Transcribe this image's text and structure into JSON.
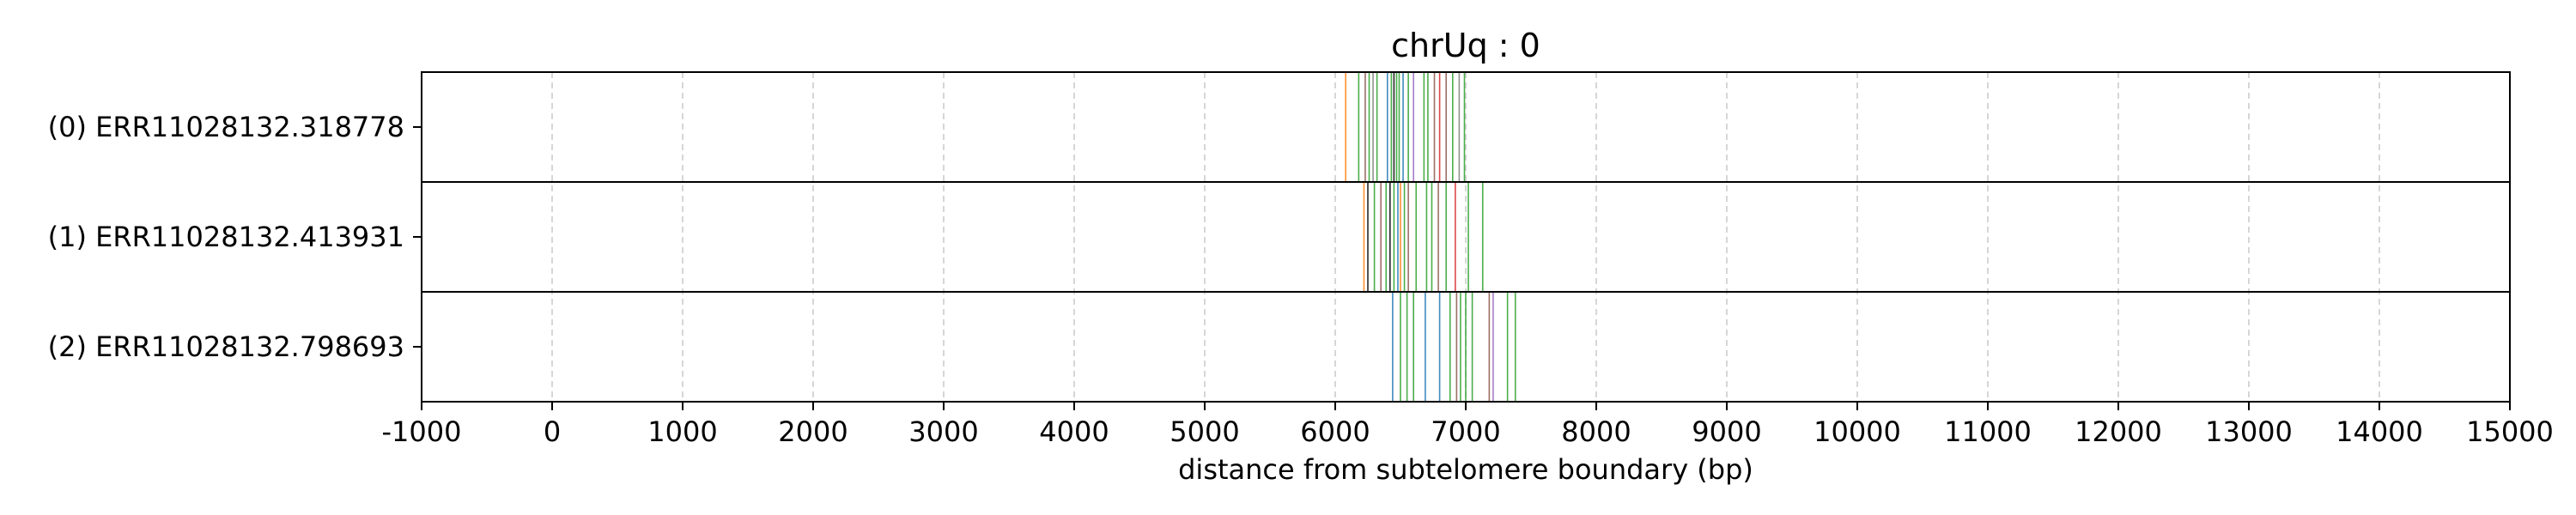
{
  "chart_data": {
    "type": "event-lines",
    "title": "chrUq : 0",
    "xlabel": "distance from subtelomere boundary (bp)",
    "xlim": [
      -1000,
      15000
    ],
    "xticks": [
      -1000,
      0,
      1000,
      2000,
      3000,
      4000,
      5000,
      6000,
      7000,
      8000,
      9000,
      10000,
      11000,
      12000,
      13000,
      14000,
      15000
    ],
    "xtick_labels": [
      "-1000",
      "0",
      "1000",
      "2000",
      "3000",
      "4000",
      "5000",
      "6000",
      "7000",
      "8000",
      "9000",
      "10000",
      "11000",
      "12000",
      "13000",
      "14000",
      "15000"
    ],
    "grid": "vertical dashed",
    "rows": [
      {
        "label": "(0) ERR11028132.318778",
        "events": [
          {
            "x": 6080,
            "color": "#ff7f0e"
          },
          {
            "x": 6180,
            "color": "#2ca02c"
          },
          {
            "x": 6230,
            "color": "#8c564b"
          },
          {
            "x": 6260,
            "color": "#2ca02c"
          },
          {
            "x": 6290,
            "color": "#7f7f7f"
          },
          {
            "x": 6320,
            "color": "#2ca02c"
          },
          {
            "x": 6400,
            "color": "#1f77b4"
          },
          {
            "x": 6430,
            "color": "#2ca02c"
          },
          {
            "x": 6450,
            "color": "#000000"
          },
          {
            "x": 6470,
            "color": "#2ca02c"
          },
          {
            "x": 6490,
            "color": "#2ca02c"
          },
          {
            "x": 6520,
            "color": "#1f77b4"
          },
          {
            "x": 6560,
            "color": "#2ca02c"
          },
          {
            "x": 6600,
            "color": "#9467bd"
          },
          {
            "x": 6680,
            "color": "#2ca02c"
          },
          {
            "x": 6710,
            "color": "#2ca02c"
          },
          {
            "x": 6760,
            "color": "#8c564b"
          },
          {
            "x": 6800,
            "color": "#d62728"
          },
          {
            "x": 6850,
            "color": "#8c564b"
          },
          {
            "x": 6900,
            "color": "#2ca02c"
          },
          {
            "x": 6950,
            "color": "#7f7f7f"
          },
          {
            "x": 6990,
            "color": "#2ca02c"
          }
        ]
      },
      {
        "label": "(1) ERR11028132.413931",
        "events": [
          {
            "x": 6220,
            "color": "#ff7f0e"
          },
          {
            "x": 6250,
            "color": "#000000"
          },
          {
            "x": 6300,
            "color": "#2ca02c"
          },
          {
            "x": 6350,
            "color": "#8c564b"
          },
          {
            "x": 6390,
            "color": "#2ca02c"
          },
          {
            "x": 6420,
            "color": "#000000"
          },
          {
            "x": 6450,
            "color": "#2ca02c"
          },
          {
            "x": 6480,
            "color": "#1f77b4"
          },
          {
            "x": 6500,
            "color": "#ff7f0e"
          },
          {
            "x": 6530,
            "color": "#2ca02c"
          },
          {
            "x": 6560,
            "color": "#8c564b"
          },
          {
            "x": 6620,
            "color": "#2ca02c"
          },
          {
            "x": 6700,
            "color": "#2ca02c"
          },
          {
            "x": 6740,
            "color": "#2ca02c"
          },
          {
            "x": 6790,
            "color": "#8c564b"
          },
          {
            "x": 6850,
            "color": "#2ca02c"
          },
          {
            "x": 6920,
            "color": "#d62728"
          },
          {
            "x": 7020,
            "color": "#2ca02c"
          },
          {
            "x": 7130,
            "color": "#2ca02c"
          }
        ]
      },
      {
        "label": "(2) ERR11028132.798693",
        "events": [
          {
            "x": 6440,
            "color": "#1f77b4"
          },
          {
            "x": 6500,
            "color": "#2ca02c"
          },
          {
            "x": 6550,
            "color": "#2ca02c"
          },
          {
            "x": 6600,
            "color": "#2ca02c"
          },
          {
            "x": 6690,
            "color": "#1f77b4"
          },
          {
            "x": 6800,
            "color": "#1f77b4"
          },
          {
            "x": 6880,
            "color": "#2ca02c"
          },
          {
            "x": 6930,
            "color": "#8c564b"
          },
          {
            "x": 6960,
            "color": "#2ca02c"
          },
          {
            "x": 7000,
            "color": "#2ca02c"
          },
          {
            "x": 7050,
            "color": "#2ca02c"
          },
          {
            "x": 7180,
            "color": "#8c564b"
          },
          {
            "x": 7210,
            "color": "#9467bd"
          },
          {
            "x": 7320,
            "color": "#2ca02c"
          },
          {
            "x": 7380,
            "color": "#2ca02c"
          }
        ]
      }
    ]
  }
}
